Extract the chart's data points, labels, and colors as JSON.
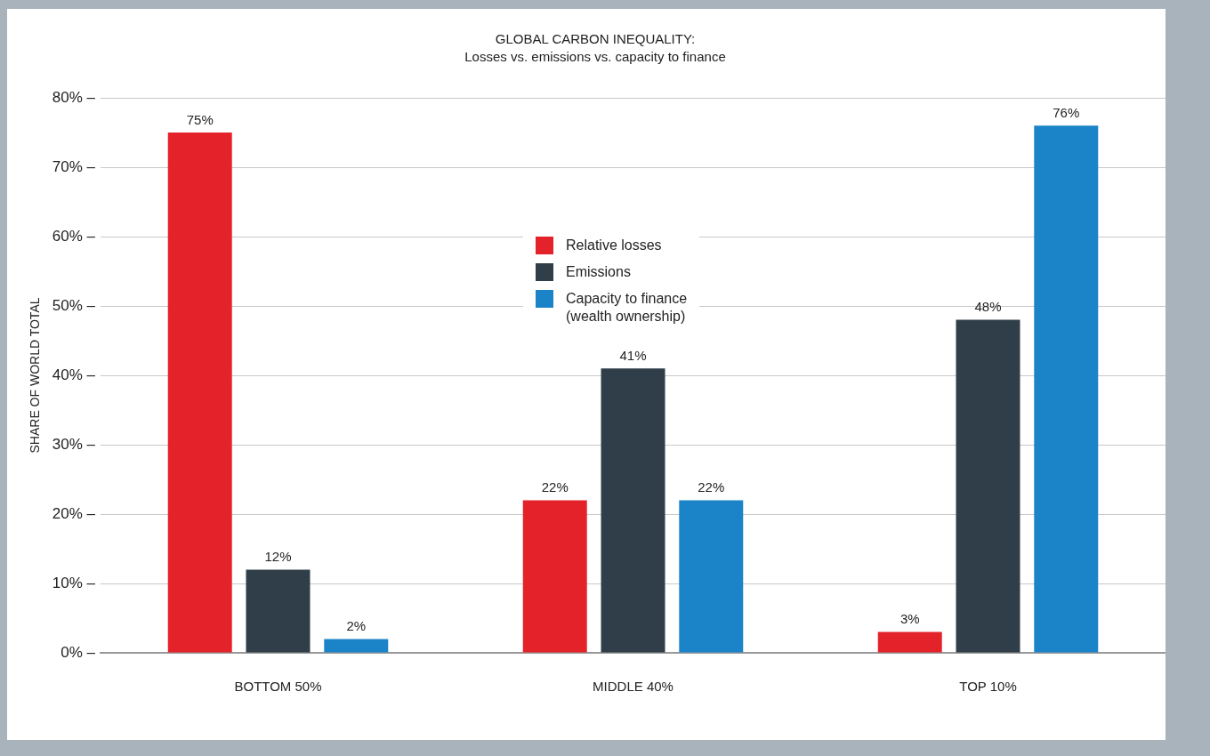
{
  "chart_data": {
    "type": "bar",
    "title": "GLOBAL CARBON INEQUALITY:",
    "subtitle": "Losses vs. emissions vs. capacity to finance",
    "ylabel": "SHARE OF WORLD TOTAL",
    "categories": [
      "BOTTOM 50%",
      "MIDDLE 40%",
      "TOP 10%"
    ],
    "series": [
      {
        "name": "Relative losses",
        "color": "#e3222a",
        "values": [
          75,
          22,
          3
        ],
        "value_labels": [
          "75%",
          "22%",
          "3%"
        ]
      },
      {
        "name": "Emissions",
        "color": "#2f3e48",
        "values": [
          12,
          41,
          48
        ],
        "value_labels": [
          "12%",
          "41%",
          "48%"
        ]
      },
      {
        "name": "Capacity to finance\n(wealth ownership)",
        "color": "#1b84c8",
        "values": [
          2,
          22,
          76
        ],
        "value_labels": [
          "2%",
          "22%",
          "76%"
        ]
      }
    ],
    "ylim": [
      0,
      80
    ],
    "yticks": [
      {
        "value": 0,
        "label": "0% –"
      },
      {
        "value": 10,
        "label": "10% –"
      },
      {
        "value": 20,
        "label": "20% –"
      },
      {
        "value": 30,
        "label": "30% –"
      },
      {
        "value": 40,
        "label": "40% –"
      },
      {
        "value": 50,
        "label": "50% –"
      },
      {
        "value": 60,
        "label": "60% –"
      },
      {
        "value": 70,
        "label": "70% –"
      },
      {
        "value": 80,
        "label": "80% –"
      }
    ],
    "grid": "y",
    "legend": "center"
  }
}
